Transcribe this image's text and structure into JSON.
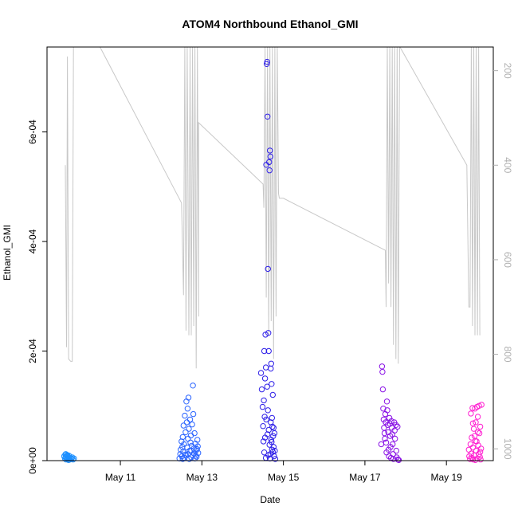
{
  "chart_data": {
    "type": "scatter",
    "title": "ATOM4 Northbound Ethanol_GMI",
    "xlabel": "Date",
    "ylabel": "Ethanol_GMI",
    "x_ticks": [
      {
        "value": 11,
        "label": "May 11"
      },
      {
        "value": 13,
        "label": "May 13"
      },
      {
        "value": 15,
        "label": "May 15"
      },
      {
        "value": 17,
        "label": "May 17"
      },
      {
        "value": 19,
        "label": "May 19"
      }
    ],
    "y_ticks": [
      {
        "value": 0,
        "label": "0e+00"
      },
      {
        "value": 0.0002,
        "label": "2e-04"
      },
      {
        "value": 0.0004,
        "label": "4e-04"
      },
      {
        "value": 0.0006,
        "label": "6e-04"
      }
    ],
    "y2_ticks": [
      {
        "value": 200,
        "label": "200"
      },
      {
        "value": 400,
        "label": "400"
      },
      {
        "value": 600,
        "label": "600"
      },
      {
        "value": 800,
        "label": "800"
      },
      {
        "value": 1000,
        "label": "1000"
      }
    ],
    "xlim": [
      9.2,
      20.15
    ],
    "ylim": [
      0,
      0.000755
    ],
    "y2lim": [
      1025,
      150
    ],
    "secondary_series_color": "#c8c8c8",
    "pressure_profile": [
      [
        9.65,
        400
      ],
      [
        9.68,
        785
      ],
      [
        9.7,
        170
      ],
      [
        9.73,
        810
      ],
      [
        9.78,
        815
      ],
      [
        9.82,
        815
      ],
      [
        9.85,
        150
      ],
      [
        10.5,
        150
      ],
      [
        12.5,
        480
      ],
      [
        12.55,
        675
      ],
      [
        12.58,
        150
      ],
      [
        12.61,
        750
      ],
      [
        12.64,
        150
      ],
      [
        12.68,
        760
      ],
      [
        12.71,
        150
      ],
      [
        12.74,
        760
      ],
      [
        12.77,
        150
      ],
      [
        12.8,
        740
      ],
      [
        12.83,
        150
      ],
      [
        12.86,
        830
      ],
      [
        12.89,
        150
      ],
      [
        12.92,
        720
      ],
      [
        12.92,
        310
      ],
      [
        14.5,
        440
      ],
      [
        14.52,
        490
      ],
      [
        14.55,
        150
      ],
      [
        14.58,
        680
      ],
      [
        14.61,
        150
      ],
      [
        14.64,
        760
      ],
      [
        14.67,
        150
      ],
      [
        14.7,
        730
      ],
      [
        14.73,
        150
      ],
      [
        14.76,
        810
      ],
      [
        14.79,
        150
      ],
      [
        14.82,
        720
      ],
      [
        14.85,
        150
      ],
      [
        14.88,
        460
      ],
      [
        14.9,
        470
      ],
      [
        15.0,
        470
      ],
      [
        17.5,
        580
      ],
      [
        17.52,
        700
      ],
      [
        17.55,
        150
      ],
      [
        17.58,
        650
      ],
      [
        17.61,
        150
      ],
      [
        17.64,
        700
      ],
      [
        17.67,
        150
      ],
      [
        17.7,
        780
      ],
      [
        17.73,
        150
      ],
      [
        17.76,
        810
      ],
      [
        17.79,
        150
      ],
      [
        17.82,
        820
      ],
      [
        17.85,
        150
      ],
      [
        17.86,
        150
      ],
      [
        19.5,
        400
      ],
      [
        19.55,
        700
      ],
      [
        19.58,
        700
      ],
      [
        19.61,
        150
      ],
      [
        19.64,
        740
      ],
      [
        19.67,
        150
      ],
      [
        19.7,
        760
      ],
      [
        19.73,
        150
      ],
      [
        19.76,
        760
      ],
      [
        19.79,
        150
      ],
      [
        19.82,
        760
      ]
    ],
    "series": [
      {
        "color": "#1e90ff",
        "values": [
          [
            9.62,
            8e-06
          ],
          [
            9.64,
            4e-06
          ],
          [
            9.65,
            1.1e-05
          ],
          [
            9.66,
            6e-06
          ],
          [
            9.67,
            2e-06
          ],
          [
            9.68,
            9e-06
          ],
          [
            9.69,
            5e-06
          ],
          [
            9.7,
            1e-05
          ],
          [
            9.71,
            3e-06
          ],
          [
            9.72,
            7e-06
          ],
          [
            9.73,
            1e-06
          ],
          [
            9.74,
            6e-06
          ],
          [
            9.75,
            4e-06
          ],
          [
            9.76,
            2e-06
          ],
          [
            9.78,
            5e-06
          ],
          [
            9.8,
            3e-06
          ],
          [
            9.82,
            6e-06
          ],
          [
            9.84,
            2e-06
          ],
          [
            9.86,
            4e-06
          ],
          [
            9.66,
            1.2e-05
          ],
          [
            9.7,
            8e-06
          ],
          [
            9.74,
            9e-06
          ]
        ]
      },
      {
        "color": "#2a64ff",
        "values": [
          [
            12.45,
            4e-06
          ],
          [
            12.47,
            1.2e-05
          ],
          [
            12.48,
            2e-05
          ],
          [
            12.5,
            3.5e-05
          ],
          [
            12.51,
            8e-06
          ],
          [
            12.52,
            2.5e-05
          ],
          [
            12.53,
            4.3e-05
          ],
          [
            12.54,
            1.6e-05
          ],
          [
            12.55,
            6.4e-05
          ],
          [
            12.56,
            3e-05
          ],
          [
            12.58,
            8.2e-05
          ],
          [
            12.59,
            1.1e-05
          ],
          [
            12.6,
            5.2e-05
          ],
          [
            12.62,
            0.000108
          ],
          [
            12.63,
            7e-05
          ],
          [
            12.64,
            2.4e-05
          ],
          [
            12.65,
            9.5e-05
          ],
          [
            12.66,
            4e-05
          ],
          [
            12.67,
            0.000115
          ],
          [
            12.68,
            5.8e-05
          ],
          [
            12.7,
            1.8e-05
          ],
          [
            12.71,
            7.5e-05
          ],
          [
            12.72,
            3.3e-05
          ],
          [
            12.73,
            4.6e-05
          ],
          [
            12.74,
            6e-06
          ],
          [
            12.75,
            2.7e-05
          ],
          [
            12.76,
            6.6e-05
          ],
          [
            12.78,
            0.000137
          ],
          [
            12.79,
            8.5e-05
          ],
          [
            12.8,
            2.2e-05
          ],
          [
            12.81,
            1.3e-05
          ],
          [
            12.82,
            5e-05
          ],
          [
            12.84,
            3.1e-05
          ],
          [
            12.86,
            1.9e-05
          ],
          [
            12.87,
            7e-06
          ],
          [
            12.89,
            3.8e-05
          ],
          [
            12.9,
            2.6e-05
          ],
          [
            12.91,
            1.4e-05
          ],
          [
            12.57,
            5e-06
          ],
          [
            12.61,
            9e-06
          ],
          [
            12.69,
            3e-06
          ],
          [
            12.77,
            1e-05
          ],
          [
            12.83,
            4e-06
          ],
          [
            12.88,
            2.1e-05
          ],
          [
            12.53,
            3e-06
          ],
          [
            12.66,
            1.2e-05
          ],
          [
            12.74,
            1.8e-05
          ],
          [
            12.85,
            9e-06
          ]
        ]
      },
      {
        "color": "#2e1fe8",
        "values": [
          [
            14.45,
            0.00016
          ],
          [
            14.47,
            0.00013
          ],
          [
            14.49,
            9.8e-05
          ],
          [
            14.5,
            6.3e-05
          ],
          [
            14.51,
            3.5e-05
          ],
          [
            14.52,
            0.00011
          ],
          [
            14.53,
            1.5e-05
          ],
          [
            14.54,
            8e-05
          ],
          [
            14.55,
            4.2e-05
          ],
          [
            14.56,
            0.00023
          ],
          [
            14.57,
            5e-06
          ],
          [
            14.58,
            0.00054
          ],
          [
            14.59,
            0.000724
          ],
          [
            14.6,
            0.000728
          ],
          [
            14.61,
            0.000628
          ],
          [
            14.62,
            0.00035
          ],
          [
            14.63,
            0.000233
          ],
          [
            14.64,
            0.0002
          ],
          [
            14.65,
            0.000545
          ],
          [
            14.66,
            0.00053
          ],
          [
            14.67,
            0.000566
          ],
          [
            14.68,
            0.000555
          ],
          [
            14.69,
            0.000168
          ],
          [
            14.7,
            0.000177
          ],
          [
            14.71,
            0.00014
          ],
          [
            14.72,
            7.8e-05
          ],
          [
            14.73,
            6.2e-05
          ],
          [
            14.74,
            0.00012
          ],
          [
            14.75,
            4.5e-05
          ],
          [
            14.76,
            2.5e-05
          ],
          [
            14.77,
            8e-06
          ],
          [
            14.78,
            5e-05
          ],
          [
            14.79,
            1.8e-05
          ],
          [
            14.8,
            3e-06
          ],
          [
            14.57,
            0.00017
          ],
          [
            14.6,
            0.000135
          ],
          [
            14.62,
            9.2e-05
          ],
          [
            14.64,
            5.6e-05
          ],
          [
            14.66,
            2.9e-05
          ],
          [
            14.68,
            1.2e-05
          ],
          [
            14.7,
            3.8e-05
          ],
          [
            14.72,
            2e-05
          ],
          [
            14.53,
            0.0002
          ],
          [
            14.55,
            0.00015
          ],
          [
            14.58,
            7.5e-05
          ],
          [
            14.61,
            4.8e-05
          ],
          [
            14.63,
            1e-05
          ],
          [
            14.67,
            4e-06
          ],
          [
            14.69,
            7e-05
          ],
          [
            14.71,
            3.4e-05
          ],
          [
            14.74,
            1.6e-05
          ],
          [
            14.76,
            6e-05
          ]
        ]
      },
      {
        "color": "#8a12e6",
        "values": [
          [
            17.4,
            3e-05
          ],
          [
            17.42,
            0.000172
          ],
          [
            17.43,
            0.000162
          ],
          [
            17.44,
            0.00013
          ],
          [
            17.45,
            9.5e-05
          ],
          [
            17.46,
            7.5e-05
          ],
          [
            17.47,
            6e-05
          ],
          [
            17.48,
            5e-05
          ],
          [
            17.49,
            4e-05
          ],
          [
            17.5,
            8.5e-05
          ],
          [
            17.51,
            7e-05
          ],
          [
            17.52,
            3.3e-05
          ],
          [
            17.53,
            1.5e-05
          ],
          [
            17.54,
            0.000108
          ],
          [
            17.55,
            9.2e-05
          ],
          [
            17.56,
            6.5e-05
          ],
          [
            17.57,
            5.2e-05
          ],
          [
            17.58,
            2e-05
          ],
          [
            17.59,
            8e-06
          ],
          [
            17.6,
            7.8e-05
          ],
          [
            17.61,
            6.7e-05
          ],
          [
            17.62,
            4.5e-05
          ],
          [
            17.63,
            2.5e-05
          ],
          [
            17.64,
            5e-06
          ],
          [
            17.65,
            7.2e-05
          ],
          [
            17.66,
            6e-05
          ],
          [
            17.67,
            4.8e-05
          ],
          [
            17.68,
            3e-05
          ],
          [
            17.69,
            1.2e-05
          ],
          [
            17.7,
            3e-06
          ],
          [
            17.72,
            7e-05
          ],
          [
            17.73,
            5.5e-05
          ],
          [
            17.74,
            4e-05
          ],
          [
            17.76,
            6.5e-05
          ],
          [
            17.77,
            1.8e-05
          ],
          [
            17.78,
            6e-06
          ],
          [
            17.8,
            6.2e-05
          ],
          [
            17.81,
            2e-06
          ],
          [
            17.83,
            1e-06
          ]
        ]
      },
      {
        "color": "#ff1fd1",
        "values": [
          [
            19.55,
            2e-05
          ],
          [
            19.56,
            8e-06
          ],
          [
            19.58,
            3e-06
          ],
          [
            19.6,
            8.6e-05
          ],
          [
            19.61,
            1.3e-05
          ],
          [
            19.62,
            4.2e-05
          ],
          [
            19.63,
            5e-06
          ],
          [
            19.64,
            9.6e-05
          ],
          [
            19.65,
            2.4e-05
          ],
          [
            19.66,
            2e-06
          ],
          [
            19.67,
            5.8e-05
          ],
          [
            19.68,
            1e-05
          ],
          [
            19.69,
            4.5e-05
          ],
          [
            19.7,
            9.5e-05
          ],
          [
            19.71,
            1e-06
          ],
          [
            19.72,
            7e-05
          ],
          [
            19.73,
            1.8e-05
          ],
          [
            19.74,
            3.5e-05
          ],
          [
            19.75,
            9.8e-05
          ],
          [
            19.76,
            4e-06
          ],
          [
            19.77,
            8e-05
          ],
          [
            19.78,
            2.8e-05
          ],
          [
            19.79,
            1.2e-05
          ],
          [
            19.8,
            0.0001
          ],
          [
            19.81,
            5e-05
          ],
          [
            19.82,
            7e-06
          ],
          [
            19.83,
            6.2e-05
          ],
          [
            19.84,
            2e-06
          ],
          [
            19.85,
            2.2e-05
          ],
          [
            19.86,
            0.000102
          ],
          [
            19.59,
            3e-05
          ],
          [
            19.65,
            6.8e-05
          ],
          [
            19.71,
            3.6e-05
          ],
          [
            19.77,
            5.2e-05
          ],
          [
            19.83,
            1.6e-05
          ]
        ]
      }
    ]
  }
}
